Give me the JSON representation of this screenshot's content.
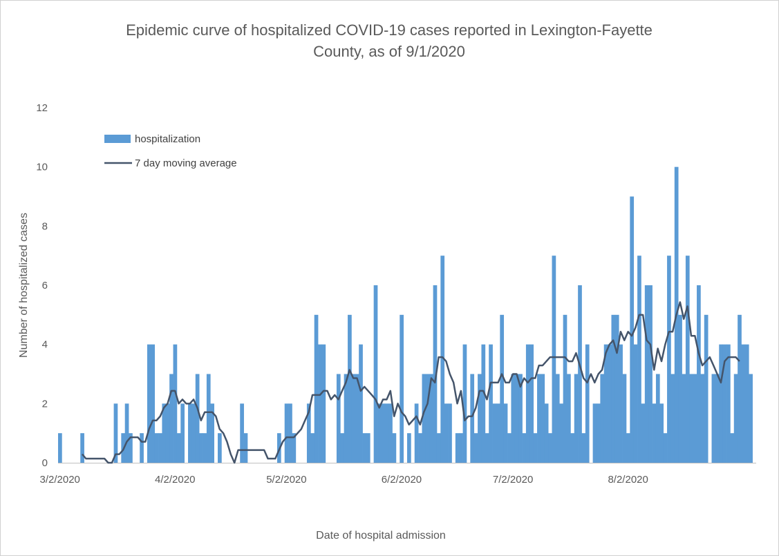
{
  "chart_data": {
    "type": "bar",
    "title_lines": [
      "Epidemic curve of hospitalized COVID-19 cases reported in Lexington-Fayette",
      "County, as of 9/1/2020"
    ],
    "xlabel": "Date of hospital admission",
    "ylabel": "Number of hospitalized cases",
    "ylim": [
      0,
      12
    ],
    "y_ticks": [
      0,
      2,
      4,
      6,
      8,
      10,
      12
    ],
    "x_tick_labels": [
      "3/2/2020",
      "4/2/2020",
      "5/2/2020",
      "6/2/2020",
      "7/2/2020",
      "8/2/2020"
    ],
    "x_tick_days": [
      0,
      31,
      61,
      92,
      122,
      153
    ],
    "legend_position": "top-left",
    "grid": false,
    "colors": {
      "bars": "#5B9BD5",
      "line": "#44546A"
    },
    "series": [
      {
        "name": "hospitalization",
        "kind": "bar",
        "values": [
          1,
          0,
          0,
          0,
          0,
          0,
          1,
          0,
          0,
          0,
          0,
          0,
          0,
          0,
          0,
          2,
          0,
          1,
          2,
          1,
          0,
          0,
          1,
          0,
          4,
          4,
          1,
          1,
          2,
          2,
          3,
          4,
          1,
          2,
          0,
          2,
          2,
          3,
          1,
          1,
          3,
          2,
          0,
          1,
          0,
          0,
          0,
          0,
          0,
          2,
          1,
          0,
          0,
          0,
          0,
          0,
          0,
          0,
          0,
          1,
          0,
          2,
          2,
          1,
          0,
          0,
          0,
          2,
          1,
          5,
          4,
          4,
          0,
          0,
          0,
          3,
          1,
          3,
          5,
          3,
          3,
          4,
          1,
          1,
          0,
          6,
          2,
          2,
          2,
          2,
          1,
          0,
          5,
          0,
          1,
          0,
          2,
          1,
          3,
          3,
          3,
          6,
          1,
          7,
          2,
          2,
          0,
          1,
          1,
          4,
          0,
          3,
          1,
          3,
          4,
          1,
          4,
          2,
          2,
          5,
          2,
          1,
          3,
          3,
          3,
          1,
          4,
          4,
          1,
          3,
          3,
          2,
          1,
          7,
          3,
          2,
          5,
          3,
          1,
          3,
          6,
          1,
          4,
          0,
          2,
          2,
          3,
          4,
          4,
          5,
          5,
          4,
          3,
          1,
          9,
          4,
          7,
          2,
          6,
          6,
          2,
          3,
          2,
          1,
          7,
          3,
          10,
          5,
          3,
          7,
          3,
          3,
          6,
          3,
          5,
          0,
          3,
          3,
          4,
          4,
          4,
          1,
          3,
          5,
          4,
          4,
          3
        ],
        "total_days": 188
      },
      {
        "name": "7 day moving average",
        "kind": "line",
        "start_day": 6,
        "values": [
          0.29,
          0.14,
          0.14,
          0.14,
          0.14,
          0.14,
          0.14,
          0.0,
          0.0,
          0.29,
          0.29,
          0.43,
          0.71,
          0.86,
          0.86,
          0.86,
          0.71,
          0.71,
          1.14,
          1.43,
          1.43,
          1.57,
          1.86,
          2.0,
          2.43,
          2.43,
          2.0,
          2.14,
          2.0,
          2.0,
          2.14,
          1.86,
          1.43,
          1.71,
          1.71,
          1.71,
          1.57,
          1.14,
          1.0,
          0.71,
          0.29,
          0.0,
          0.43,
          0.43,
          0.43,
          0.43,
          0.43,
          0.43,
          0.43,
          0.43,
          0.14,
          0.14,
          0.14,
          0.43,
          0.71,
          0.86,
          0.86,
          0.86,
          1.0,
          1.14,
          1.43,
          1.71,
          2.29,
          2.29,
          2.29,
          2.43,
          2.43,
          2.14,
          2.29,
          2.14,
          2.43,
          2.71,
          3.14,
          2.86,
          2.86,
          2.43,
          2.57,
          2.43,
          2.29,
          2.14,
          1.86,
          2.14,
          2.14,
          2.43,
          1.57,
          2.0,
          1.71,
          1.57,
          1.29,
          1.43,
          1.57,
          1.29,
          1.71,
          2.0,
          2.86,
          2.71,
          3.57,
          3.57,
          3.43,
          3.0,
          2.71,
          2.0,
          2.43,
          1.43,
          1.57,
          1.57,
          1.86,
          2.43,
          2.43,
          2.14,
          2.71,
          2.71,
          2.71,
          3.0,
          2.71,
          2.71,
          3.0,
          3.0,
          2.57,
          2.86,
          2.71,
          2.86,
          2.86,
          3.29,
          3.29,
          3.43,
          3.57,
          3.57,
          3.57,
          3.57,
          3.57,
          3.43,
          3.43,
          3.71,
          3.29,
          2.86,
          2.71,
          3.0,
          2.71,
          3.0,
          3.14,
          3.71,
          4.0,
          4.14,
          3.71,
          4.43,
          4.14,
          4.43,
          4.29,
          4.57,
          5.0,
          5.0,
          4.14,
          4.0,
          3.14,
          3.86,
          3.43,
          4.0,
          4.43,
          4.43,
          5.0,
          5.43,
          4.86,
          5.29,
          4.29,
          4.29,
          3.71,
          3.29,
          3.43,
          3.57,
          3.29,
          3.0,
          2.71,
          3.43,
          3.57,
          3.57,
          3.57,
          3.43
        ]
      }
    ]
  }
}
